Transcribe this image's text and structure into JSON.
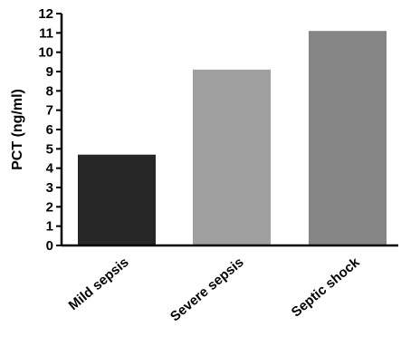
{
  "chart_data": {
    "type": "bar",
    "categories": [
      "Mild sepsis",
      "Severe sepsis",
      "Septic shock"
    ],
    "values": [
      4.7,
      9.1,
      11.1
    ],
    "colors": [
      "#262626",
      "#a0a0a0",
      "#858585"
    ],
    "ylabel": "PCT (ng/ml)",
    "xlabel": "",
    "ylim": [
      0,
      12
    ],
    "yticks": [
      "0",
      "1",
      "2",
      "3",
      "4",
      "5",
      "6",
      "7",
      "8",
      "9",
      "10",
      "11",
      "12"
    ],
    "grid": false,
    "legend": "none"
  }
}
